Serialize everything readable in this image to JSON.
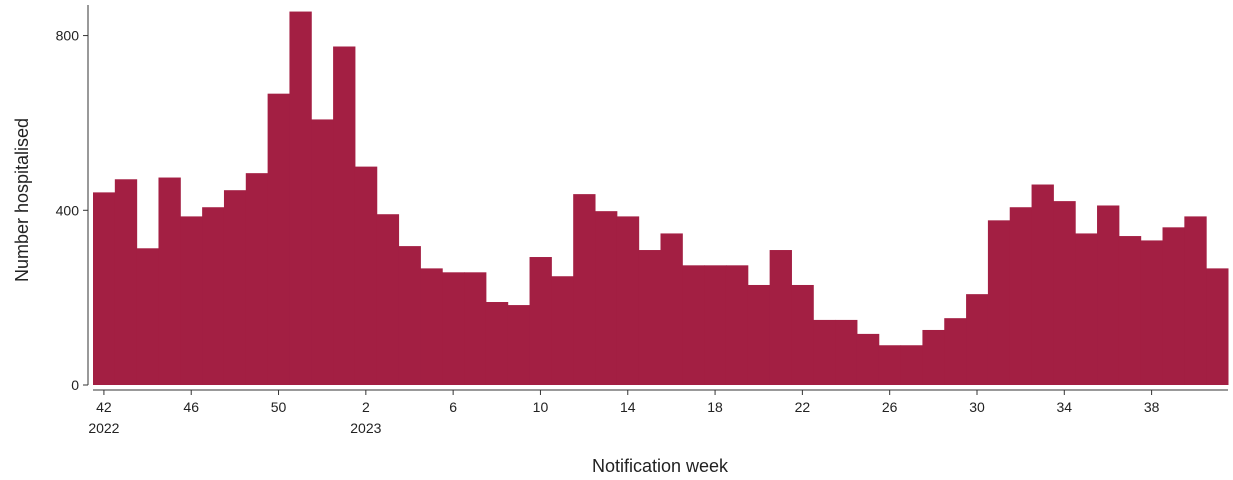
{
  "chart_data": {
    "type": "bar",
    "x_label": "Notification week",
    "y_label": "Number hospitalised",
    "color": "#a31f43",
    "categories": [
      "42\n2022",
      null,
      null,
      null,
      "46",
      null,
      null,
      null,
      "50",
      null,
      null,
      null,
      "2\n2023",
      null,
      null,
      null,
      "6",
      null,
      null,
      null,
      "10",
      null,
      null,
      null,
      "14",
      null,
      null,
      null,
      "18",
      null,
      null,
      null,
      "22",
      null,
      null,
      null,
      "26",
      null,
      null,
      null,
      "30",
      null,
      null,
      null,
      "34",
      null,
      null,
      null,
      "38",
      null,
      null,
      null
    ],
    "values": [
      441,
      471,
      313,
      475,
      386,
      407,
      446,
      485,
      667,
      855,
      608,
      775,
      500,
      391,
      318,
      267,
      258,
      258,
      190,
      183,
      293,
      249,
      437,
      398,
      386,
      309,
      347,
      274,
      274,
      274,
      229,
      309,
      229,
      149,
      149,
      117,
      91,
      91,
      126,
      153,
      208,
      377,
      407,
      459,
      421,
      347,
      411,
      341,
      331,
      361,
      386,
      267
    ],
    "ylim": [
      0,
      870
    ],
    "yticks": [
      0,
      400,
      800
    ]
  }
}
